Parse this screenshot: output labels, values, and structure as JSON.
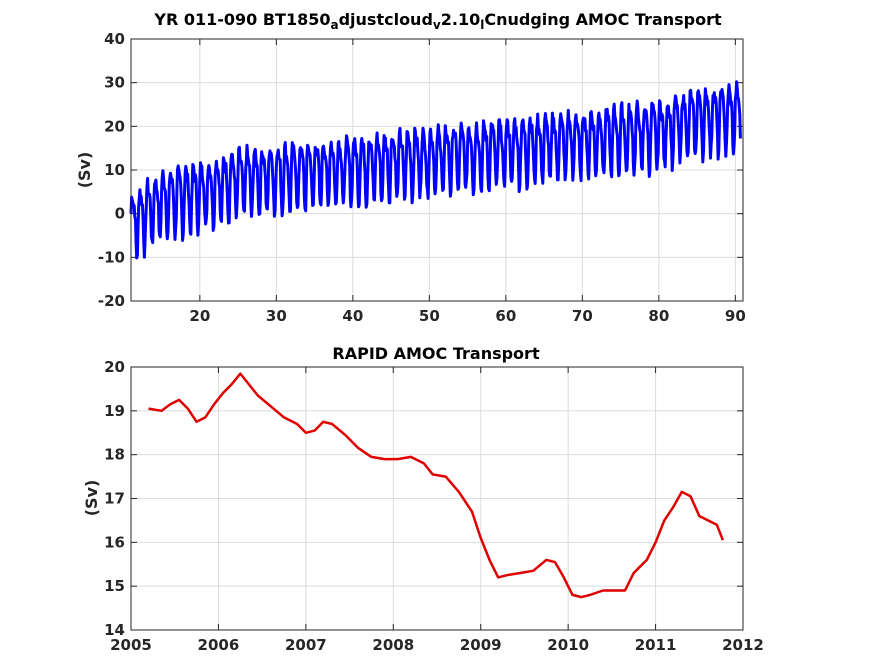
{
  "chart_data": [
    {
      "type": "line",
      "title_main": "YR 011-090 BT1850",
      "title_parts": [
        {
          "text": "YR 011-090 BT1850",
          "sub": false
        },
        {
          "text": "a",
          "sub": true
        },
        {
          "text": "djustcloud",
          "sub": false
        },
        {
          "text": "v",
          "sub": true
        },
        {
          "text": "2.10",
          "sub": false
        },
        {
          "text": "l",
          "sub": true
        },
        {
          "text": "Cnudging AMOC Transport",
          "sub": false
        }
      ],
      "ylabel": "(Sv)",
      "xlabel": "",
      "xlim": [
        11,
        91
      ],
      "ylim": [
        -20,
        40
      ],
      "xticks": [
        20,
        30,
        40,
        50,
        60,
        70,
        80,
        90
      ],
      "yticks": [
        -20,
        -10,
        0,
        10,
        20,
        30,
        40
      ],
      "grid": true,
      "color": "#0000ff",
      "series_description": "monthly AMOC transport with strong seasonal cycle; annual mean rises from about 0 Sv at year 11 to about 23 Sv at year 91",
      "annual_mean_anchors": {
        "x": [
          11,
          15,
          20,
          25,
          30,
          35,
          40,
          45,
          50,
          55,
          60,
          65,
          70,
          75,
          80,
          85,
          90.7
        ],
        "y": [
          -2,
          3,
          5,
          8,
          9,
          10,
          11,
          12,
          13,
          14,
          15,
          16,
          17,
          18,
          19,
          22,
          23
        ]
      },
      "seasonal_amplitude_anchors": {
        "x": [
          11,
          20,
          40,
          60,
          80,
          90.7
        ],
        "y": [
          8,
          8,
          8,
          8,
          8,
          8
        ]
      },
      "x_start": 11,
      "x_end": 90.7
    },
    {
      "type": "line",
      "title": "RAPID AMOC Transport",
      "ylabel": "(Sv)",
      "xlabel": "",
      "xlim": [
        2005,
        2012
      ],
      "ylim": [
        14,
        20
      ],
      "xticks": [
        2005,
        2006,
        2007,
        2008,
        2009,
        2010,
        2011,
        2012
      ],
      "yticks": [
        14,
        15,
        16,
        17,
        18,
        19,
        20
      ],
      "grid": true,
      "color": "#e00000",
      "x": [
        2005.2,
        2005.35,
        2005.45,
        2005.55,
        2005.65,
        2005.75,
        2005.85,
        2005.95,
        2006.05,
        2006.15,
        2006.25,
        2006.35,
        2006.45,
        2006.6,
        2006.75,
        2006.9,
        2007.0,
        2007.1,
        2007.2,
        2007.3,
        2007.45,
        2007.6,
        2007.75,
        2007.9,
        2008.05,
        2008.2,
        2008.35,
        2008.45,
        2008.6,
        2008.75,
        2008.9,
        2009.0,
        2009.1,
        2009.2,
        2009.3,
        2009.45,
        2009.6,
        2009.75,
        2009.85,
        2009.95,
        2010.05,
        2010.15,
        2010.25,
        2010.4,
        2010.55,
        2010.65,
        2010.75,
        2010.9,
        2011.0,
        2011.1,
        2011.2,
        2011.3,
        2011.4,
        2011.5,
        2011.6,
        2011.7,
        2011.77
      ],
      "values": [
        19.05,
        19.0,
        19.15,
        19.25,
        19.05,
        18.75,
        18.85,
        19.15,
        19.4,
        19.6,
        19.85,
        19.6,
        19.35,
        19.1,
        18.85,
        18.7,
        18.5,
        18.55,
        18.75,
        18.7,
        18.45,
        18.15,
        17.95,
        17.9,
        17.9,
        17.95,
        17.8,
        17.55,
        17.5,
        17.15,
        16.7,
        16.1,
        15.6,
        15.2,
        15.25,
        15.3,
        15.35,
        15.6,
        15.55,
        15.2,
        14.8,
        14.75,
        14.8,
        14.9,
        14.9,
        14.9,
        15.3,
        15.6,
        16.0,
        16.5,
        16.8,
        17.15,
        17.05,
        16.6,
        16.5,
        16.4,
        16.05
      ]
    }
  ]
}
